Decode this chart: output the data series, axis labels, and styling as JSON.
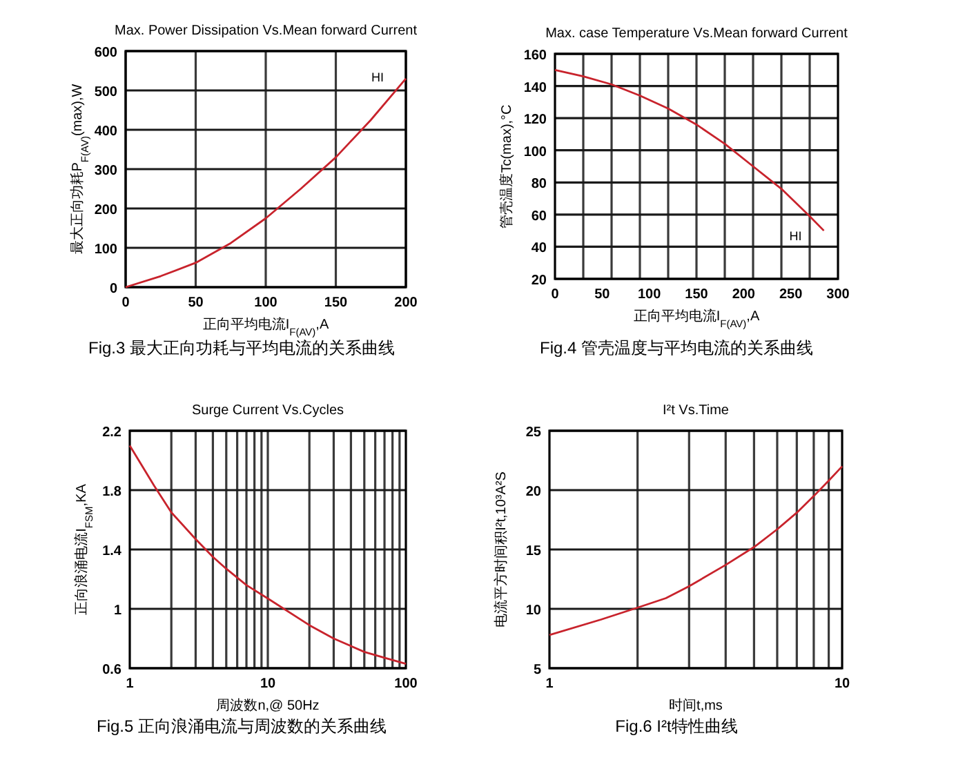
{
  "chart_data": [
    {
      "type": "line",
      "title": "Max. Power Dissipation Vs.Mean forward Current",
      "xlabel": "正向平均电流I$_{F(AV)}$,A",
      "ylabel": "最大正向功耗P$_{F(AV)}$(max),W",
      "annotations": [
        "Fig.3 最大正向功耗与平均电流的关系曲线"
      ],
      "xlim": [
        0,
        200
      ],
      "xticks": [
        0,
        50,
        100,
        150,
        200
      ],
      "ylim": [
        0,
        600
      ],
      "yticks": [
        0,
        100,
        200,
        300,
        400,
        500,
        600
      ],
      "grid": true,
      "series": [
        {
          "name": "HI",
          "color": "#c8232c",
          "x": [
            0,
            25,
            50,
            75,
            100,
            125,
            150,
            175,
            200
          ],
          "values": [
            0,
            28,
            62,
            112,
            175,
            250,
            330,
            425,
            530
          ]
        }
      ]
    },
    {
      "type": "line",
      "title": "Max. case Temperature Vs.Mean forward Current",
      "xlabel": "正向平均电流I$_{F(AV)}$,A",
      "ylabel": "管壳温度Tc(max),°C",
      "annotations": [
        "Fig.4 管壳温度与平均电流的关系曲线"
      ],
      "xlim": [
        0,
        300
      ],
      "xticks": [
        0,
        {
          "value": 30,
          "label": null
        },
        50,
        {
          "value": 60,
          "label": null
        },
        {
          "value": 90,
          "label": null
        },
        100,
        {
          "value": 120,
          "label": null
        },
        150,
        {
          "value": 150,
          "label": null
        },
        {
          "value": 180,
          "label": null
        },
        200,
        {
          "value": 210,
          "label": null
        },
        {
          "value": 240,
          "label": null
        },
        250,
        {
          "value": 270,
          "label": null
        },
        300
      ],
      "ylim": [
        20,
        160
      ],
      "yticks": [
        20,
        40,
        60,
        80,
        100,
        120,
        140,
        160
      ],
      "grid": true,
      "series": [
        {
          "name": "HI",
          "color": "#c8232c",
          "x": [
            0,
            30,
            60,
            90,
            120,
            150,
            180,
            210,
            240,
            270,
            285
          ],
          "values": [
            150,
            146,
            141,
            134,
            126,
            116,
            104,
            90,
            76,
            59,
            50
          ]
        }
      ]
    },
    {
      "type": "line",
      "title": "Surge Current Vs.Cycles",
      "xlabel": "周波数n,@ 50Hz",
      "ylabel": "正向浪涌电流I$_{FSM}$,KA",
      "annotations": [
        "Fig.5 正向浪涌电流与周波数的关系曲线"
      ],
      "log": "x",
      "xlim": [
        1,
        100
      ],
      "xticks": [
        1,
        {
          "value": 2,
          "label": null
        },
        {
          "value": 3,
          "label": null
        },
        {
          "value": 4,
          "label": null
        },
        {
          "value": 5,
          "label": null
        },
        {
          "value": 6,
          "label": null
        },
        {
          "value": 7,
          "label": null
        },
        {
          "value": 8,
          "label": null
        },
        {
          "value": 9,
          "label": null
        },
        10,
        {
          "value": 10,
          "label": null
        },
        {
          "value": 20,
          "label": null
        },
        {
          "value": 30,
          "label": null
        },
        {
          "value": 40,
          "label": null
        },
        {
          "value": 50,
          "label": null
        },
        {
          "value": 60,
          "label": null
        },
        {
          "value": 70,
          "label": null
        },
        {
          "value": 80,
          "label": null
        },
        {
          "value": 90,
          "label": null
        },
        100
      ],
      "ylim": [
        0.6,
        2.2
      ],
      "yticks": [
        0.6,
        1,
        1.4,
        1.8,
        2.2
      ],
      "grid": true,
      "series": [
        {
          "color": "#c8232c",
          "x": [
            1,
            1.5,
            2,
            3,
            4,
            5,
            7,
            10,
            20,
            30,
            50,
            70,
            100
          ],
          "values": [
            2.1,
            1.83,
            1.65,
            1.47,
            1.35,
            1.27,
            1.16,
            1.07,
            0.89,
            0.8,
            0.71,
            0.67,
            0.63
          ]
        }
      ]
    },
    {
      "type": "line",
      "title": "I²t  Vs.Time",
      "xlabel": "时间t,ms",
      "ylabel": "电流平方时间积I²t,10³A²S",
      "annotations": [
        "Fig.6 I²t特性曲线"
      ],
      "log": "x",
      "xlim": [
        1,
        10
      ],
      "xticks": [
        1,
        {
          "value": 2,
          "label": null
        },
        {
          "value": 3,
          "label": null
        },
        {
          "value": 4,
          "label": null
        },
        {
          "value": 5,
          "label": null
        },
        {
          "value": 6,
          "label": null
        },
        {
          "value": 7,
          "label": null
        },
        {
          "value": 8,
          "label": null
        },
        {
          "value": 9,
          "label": null
        },
        10
      ],
      "ylim": [
        5,
        25
      ],
      "yticks": [
        5,
        10,
        15,
        20,
        25
      ],
      "grid": true,
      "series": [
        {
          "color": "#c8232c",
          "x": [
            1,
            1.5,
            2,
            2.5,
            3,
            4,
            5,
            6,
            7,
            8,
            9,
            10
          ],
          "values": [
            7.8,
            9.1,
            10.1,
            10.9,
            11.9,
            13.7,
            15.2,
            16.7,
            18.1,
            19.5,
            20.8,
            22
          ]
        }
      ]
    }
  ]
}
